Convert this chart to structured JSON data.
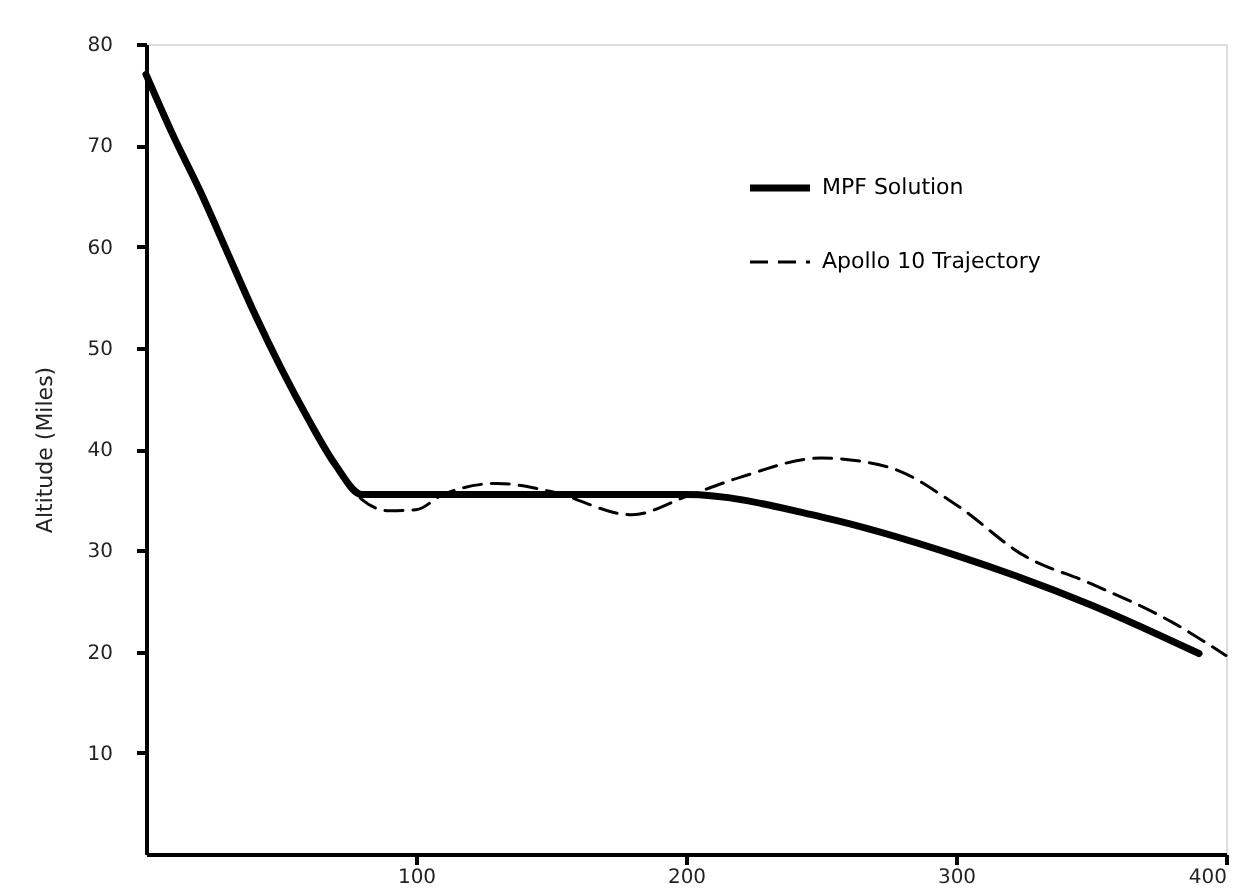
{
  "chart_data": {
    "type": "line",
    "ylabel": "Altitude (Miles)",
    "xlim": [
      0,
      400
    ],
    "xticks": [
      100,
      200,
      300,
      400
    ],
    "ylim": [
      0,
      80
    ],
    "yticks": [
      10,
      20,
      30,
      40,
      50,
      60,
      70,
      80
    ],
    "grid": false,
    "legend": "top right",
    "series": [
      {
        "name": "MPF Solution",
        "color": "#000000",
        "line_style": "solid",
        "x": [
          0,
          10,
          20,
          30,
          40,
          50,
          60,
          70,
          80,
          100,
          150,
          200,
          250,
          300,
          350,
          390
        ],
        "values": [
          77,
          71,
          65.5,
          59.5,
          53.5,
          48,
          43,
          38.5,
          35.5,
          35.5,
          35.5,
          35.5,
          33.3,
          29.5,
          24.6,
          19.8
        ]
      },
      {
        "name": "Apollo 10 Trajectory",
        "color": "#000000",
        "line_style": "dashed",
        "x": [
          0,
          10,
          20,
          30,
          40,
          50,
          60,
          70,
          80,
          90,
          100,
          110,
          130,
          150,
          180,
          200,
          220,
          250,
          275,
          300,
          325,
          350,
          380,
          400
        ],
        "values": [
          77,
          71,
          65.5,
          59.5,
          53.5,
          48,
          43,
          38.5,
          35,
          33.9,
          34,
          35.5,
          36.6,
          35.8,
          33.5,
          35.3,
          37.2,
          39.1,
          38.2,
          34.5,
          29.5,
          26.7,
          22.9,
          19.6
        ]
      }
    ]
  }
}
